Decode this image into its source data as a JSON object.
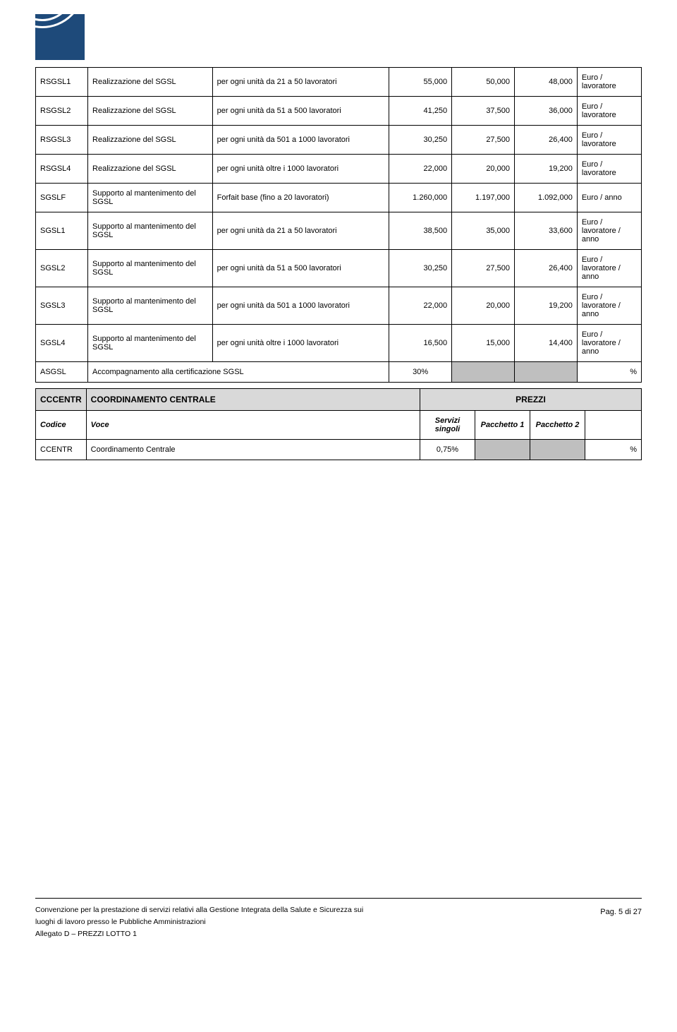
{
  "table1": {
    "rows": [
      {
        "code": "RSGSL1",
        "voce": "Realizzazione del SGSL",
        "desc": "per ogni unità da 21 a 50 lavoratori",
        "v1": "55,000",
        "v2": "50,000",
        "v3": "48,000",
        "unit": "Euro / lavoratore"
      },
      {
        "code": "RSGSL2",
        "voce": "Realizzazione del SGSL",
        "desc": "per ogni unità da 51 a 500 lavoratori",
        "v1": "41,250",
        "v2": "37,500",
        "v3": "36,000",
        "unit": "Euro / lavoratore"
      },
      {
        "code": "RSGSL3",
        "voce": "Realizzazione del SGSL",
        "desc": "per ogni unità da 501 a 1000 lavoratori",
        "v1": "30,250",
        "v2": "27,500",
        "v3": "26,400",
        "unit": "Euro / lavoratore"
      },
      {
        "code": "RSGSL4",
        "voce": "Realizzazione del SGSL",
        "desc": "per ogni unità oltre i 1000 lavoratori",
        "v1": "22,000",
        "v2": "20,000",
        "v3": "19,200",
        "unit": "Euro / lavoratore"
      },
      {
        "code": "SGSLF",
        "voce": "Supporto al mantenimento del SGSL",
        "desc": "Forfait base (fino a 20 lavoratori)",
        "v1": "1.260,000",
        "v2": "1.197,000",
        "v3": "1.092,000",
        "unit": "Euro / anno"
      },
      {
        "code": "SGSL1",
        "voce": "Supporto al mantenimento del SGSL",
        "desc": "per ogni unità da 21 a 50 lavoratori",
        "v1": "38,500",
        "v2": "35,000",
        "v3": "33,600",
        "unit": "Euro / lavoratore / anno"
      },
      {
        "code": "SGSL2",
        "voce": "Supporto al mantenimento del SGSL",
        "desc": "per ogni unità da 51 a 500 lavoratori",
        "v1": "30,250",
        "v2": "27,500",
        "v3": "26,400",
        "unit": "Euro / lavoratore / anno"
      },
      {
        "code": "SGSL3",
        "voce": "Supporto al mantenimento del SGSL",
        "desc": "per ogni unità da 501 a 1000 lavoratori",
        "v1": "22,000",
        "v2": "20,000",
        "v3": "19,200",
        "unit": "Euro / lavoratore / anno"
      },
      {
        "code": "SGSL4",
        "voce": "Supporto al mantenimento del SGSL",
        "desc": "per ogni unità oltre i 1000 lavoratori",
        "v1": "16,500",
        "v2": "15,000",
        "v3": "14,400",
        "unit": "Euro / lavoratore / anno"
      }
    ],
    "asgl_row": {
      "code": "ASGSL",
      "voce": "Accompagnamento alla certificazione SGSL",
      "v1": "30%",
      "unit": "%"
    }
  },
  "cccentr": {
    "header_code": "CCCENTR",
    "header_label": "COORDINAMENTO CENTRALE",
    "header_prezzi": "PREZZI",
    "sub_code": "Codice",
    "sub_voce": "Voce",
    "sub_c1": "Servizi singoli",
    "sub_c2": "Pacchetto 1",
    "sub_c3": "Pacchetto 2",
    "row": {
      "code": "CCENTR",
      "voce": "Coordinamento Centrale",
      "v1": "0,75%",
      "unit": "%"
    }
  },
  "footer": {
    "line1": "Convenzione per la prestazione di servizi relativi alla Gestione Integrata della Salute e Sicurezza sui",
    "line2": "luoghi di lavoro presso le Pubbliche Amministrazioni",
    "line3": "Allegato D – PREZZI LOTTO 1",
    "page": "Pag. 5 di 27"
  },
  "colors": {
    "logo_bg": "#1e4a7a",
    "header_bg": "#d9d9d9",
    "grey_cell": "#bfbfbf",
    "border": "#000000"
  }
}
